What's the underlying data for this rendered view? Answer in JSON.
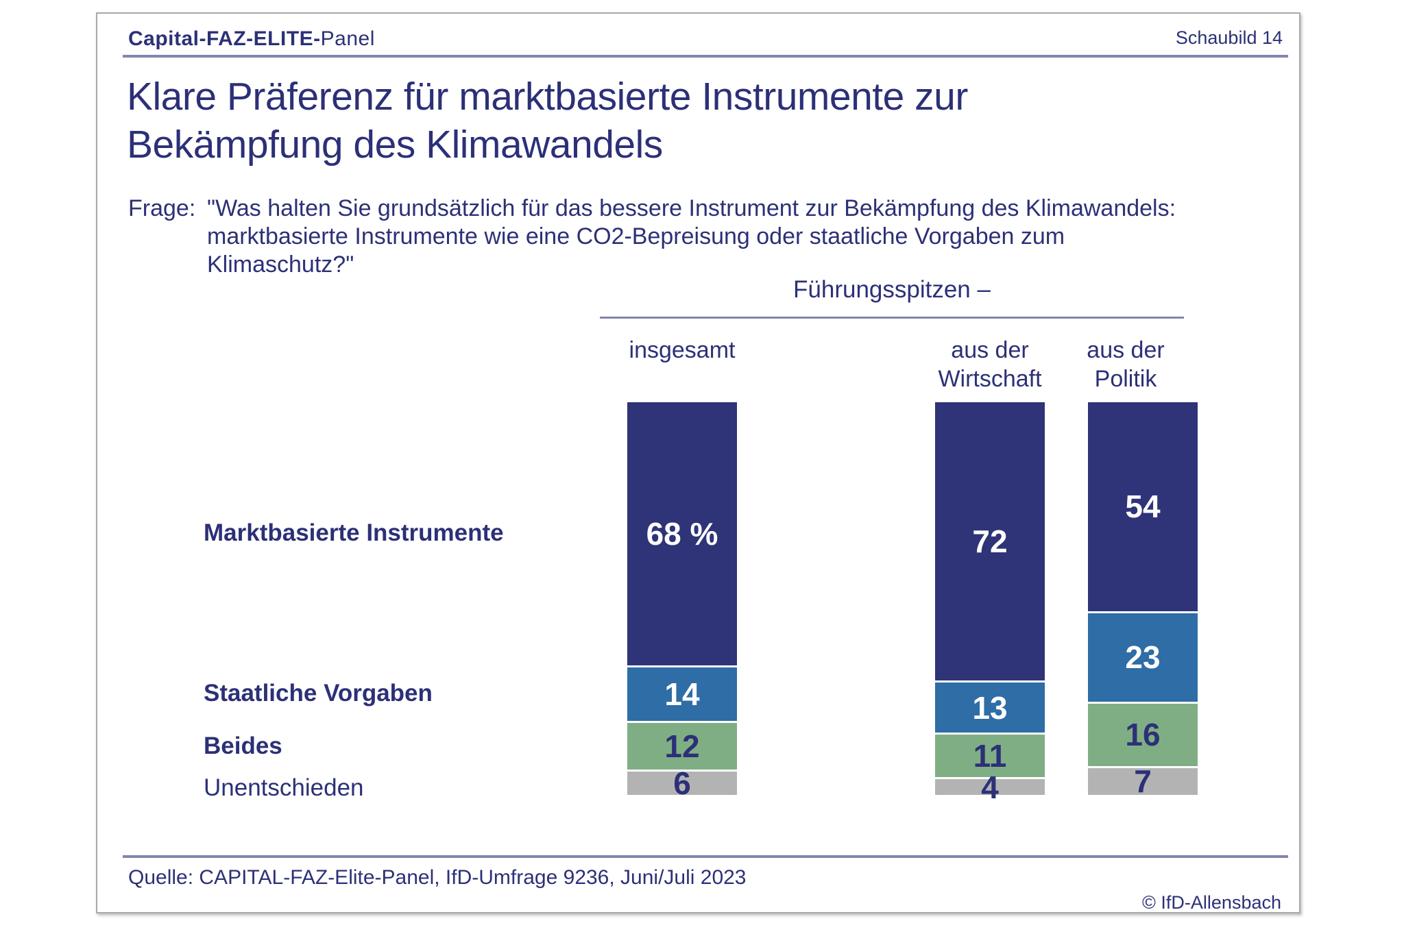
{
  "header": {
    "brand_bold": "Capital-FAZ-ELITE-",
    "brand_regular": "Panel",
    "slide_label": "Schaubild 14"
  },
  "title": {
    "line1": "Klare Präferenz für marktbasierte Instrumente zur",
    "line2": "Bekämpfung des Klimawandels"
  },
  "question": {
    "label": "Frage:",
    "lines": [
      "\"Was halten Sie grundsätzlich für das bessere Instrument zur Bekämpfung des Klimawandels:",
      "marktbasierte Instrumente wie eine CO2-Bepreisung oder staatliche Vorgaben zum",
      "Klimaschutz?\""
    ]
  },
  "group_header": {
    "title": "Führungsspitzen –"
  },
  "columns": [
    {
      "line1": "insgesamt",
      "line2": ""
    },
    {
      "line1": "aus der",
      "line2": "Wirtschaft"
    },
    {
      "line1": "aus der",
      "line2": "Politik"
    }
  ],
  "rows": [
    {
      "label": "Marktbasierte Instrumente"
    },
    {
      "label": "Staatliche Vorgaben"
    },
    {
      "label": "Beides"
    },
    {
      "label": "Unentschieden"
    }
  ],
  "chart_data": {
    "type": "bar",
    "stacked": true,
    "orientation": "vertical",
    "unit": "percent",
    "title": "Führungsspitzen –",
    "categories": [
      "insgesamt",
      "aus der Wirtschaft",
      "aus der Politik"
    ],
    "series": [
      {
        "name": "Marktbasierte Instrumente",
        "values": [
          68,
          72,
          54
        ],
        "labels": [
          "68 %",
          "72",
          "54"
        ],
        "color": "#2f3377",
        "label_color": "#ffffff"
      },
      {
        "name": "Staatliche Vorgaben",
        "values": [
          14,
          13,
          23
        ],
        "labels": [
          "14",
          "13",
          "23"
        ],
        "color": "#2e6da5",
        "label_color": "#ffffff"
      },
      {
        "name": "Beides",
        "values": [
          12,
          11,
          16
        ],
        "labels": [
          "12",
          "11",
          "16"
        ],
        "color": "#80ae84",
        "label_color": "#2c3077"
      },
      {
        "name": "Unentschieden",
        "values": [
          6,
          4,
          7
        ],
        "labels": [
          "6",
          "4",
          "7"
        ],
        "color": "#b3b3b3",
        "label_color": "#2c3077"
      }
    ],
    "ylim": [
      0,
      100
    ],
    "legend_position": "left-row-labels",
    "grid": false
  },
  "footer": {
    "source": "Quelle: CAPITAL-FAZ-Elite-Panel, IfD-Umfrage 9236, Juni/Juli 2023",
    "copyright": "© IfD-Allensbach"
  },
  "colors": {
    "text_navy": "#2c3077",
    "bar_navy": "#2f3377",
    "bar_blue": "#2e6da5",
    "bar_green": "#80ae84",
    "bar_gray": "#b3b3b3",
    "rule": "#8285ae",
    "slide_border": "#a9a9a9"
  }
}
